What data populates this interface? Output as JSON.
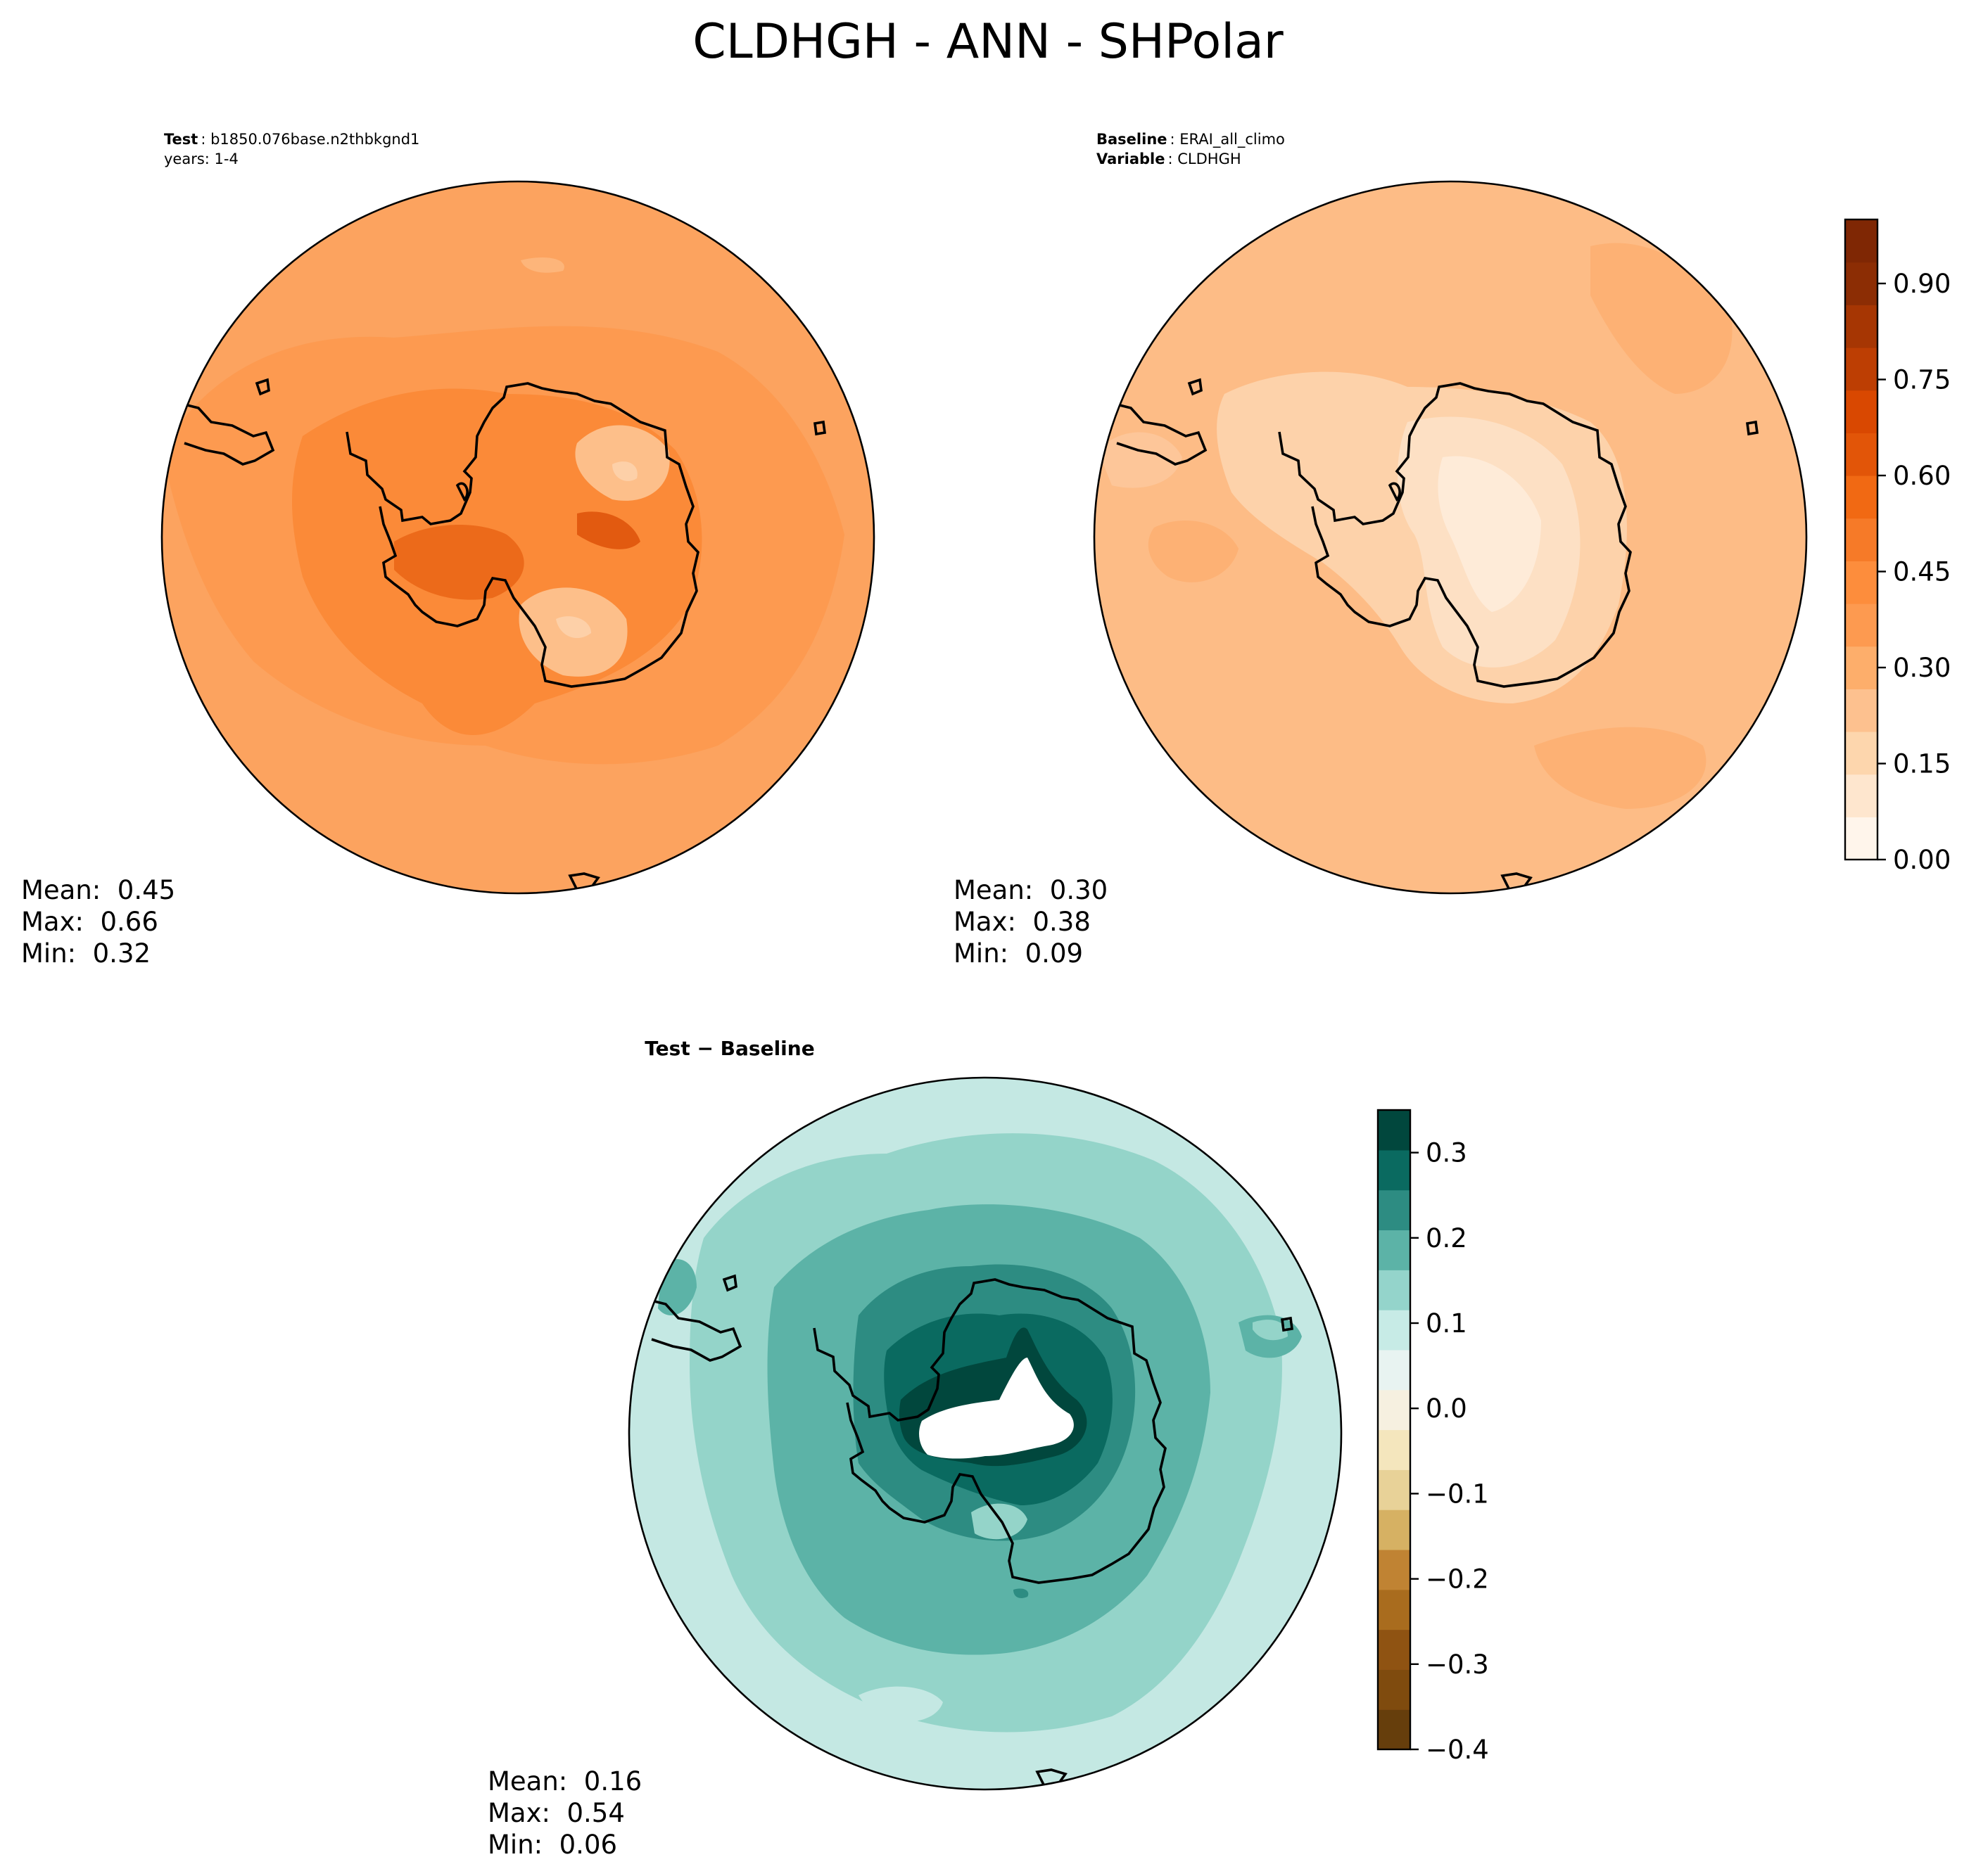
{
  "figure": {
    "title": "CLDHGH - ANN - SHPolar"
  },
  "panels": [
    {
      "id": "test",
      "header": [
        {
          "bold": "Test",
          "text": "b1850.076base.n2thbkgnd1"
        },
        {
          "bold": "",
          "text": "years: 1-4"
        }
      ],
      "stats": {
        "mean": "Mean:  0.45",
        "max": "Max:  0.66",
        "min": "Min:  0.32"
      },
      "colorscale": "oranges"
    },
    {
      "id": "baseline",
      "header": [
        {
          "bold": "Baseline",
          "text": "ERAI_all_climo"
        },
        {
          "bold": "Variable",
          "text": "CLDHGH"
        }
      ],
      "stats": {
        "mean": "Mean:  0.30",
        "max": "Max:  0.38",
        "min": "Min:  0.09"
      },
      "colorscale": "oranges"
    },
    {
      "id": "diff",
      "header": [
        {
          "bold": "Test − Baseline",
          "text": ""
        }
      ],
      "stats": {
        "mean": "Mean:  0.16",
        "max": "Max:  0.54",
        "min": "Min:  0.06"
      },
      "colorscale": "BrBG"
    }
  ],
  "colorbars": [
    {
      "id": "cbar-main",
      "range": [
        0,
        1
      ],
      "tick_values": [
        0.0,
        0.15,
        0.3,
        0.45,
        0.6,
        0.75,
        0.9
      ],
      "tick_labels": [
        "0.00",
        "0.15",
        "0.30",
        "0.45",
        "0.60",
        "0.75",
        "0.90"
      ],
      "colors": [
        "#fff5eb",
        "#fee6ce",
        "#fdd6ad",
        "#fdc18f",
        "#fdae6b",
        "#fd9a50",
        "#fd8d3c",
        "#f67a28",
        "#f16913",
        "#e25508",
        "#d94801",
        "#bd3e03",
        "#a63603",
        "#8c2d04",
        "#7f2704"
      ]
    },
    {
      "id": "cbar-diff",
      "range": [
        -0.4,
        0.35
      ],
      "tick_values": [
        -0.4,
        -0.3,
        -0.2,
        -0.1,
        0.0,
        0.1,
        0.2,
        0.3
      ],
      "tick_labels": [
        "−0.4",
        "−0.3",
        "−0.2",
        "−0.1",
        "0.0",
        "0.1",
        "0.2",
        "0.3"
      ],
      "colors": [
        "#663e0c",
        "#7f4b0e",
        "#8f5312",
        "#a96c1e",
        "#c08333",
        "#d6b163",
        "#e8d298",
        "#f4e6bd",
        "#f6f0e0",
        "#e8f3f1",
        "#c7ebe6",
        "#94d4cb",
        "#5cb3a7",
        "#2d8c82",
        "#0a6a60",
        "#01473d"
      ]
    }
  ]
}
